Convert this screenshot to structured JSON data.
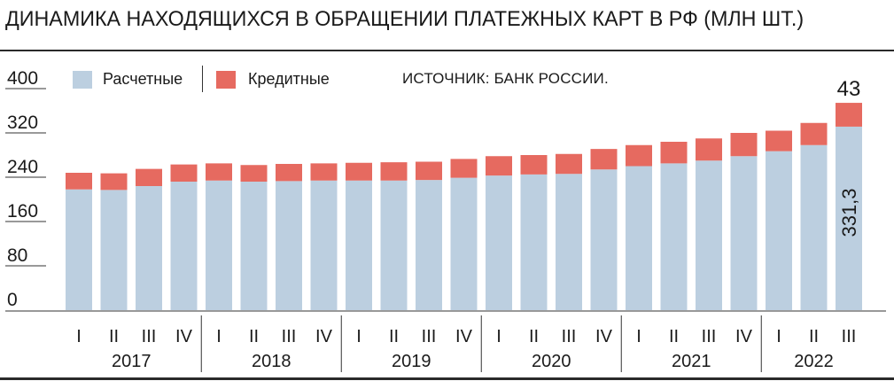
{
  "title": "ДИНАМИКА НАХОДЯЩИХСЯ В ОБРАЩЕНИИ ПЛАТЕЖНЫХ КАРТ В РФ (МЛН ШТ.)",
  "source": "ИСТОЧНИК: БАНК РОССИИ.",
  "colors": {
    "settlement": "#bccfe0",
    "credit": "#e66a60",
    "text": "#1a1a1a"
  },
  "legend": {
    "settlement_label": "Расчетные",
    "credit_label": "Кредитные"
  },
  "chart_data": {
    "type": "bar",
    "stacked": true,
    "title": "ДИНАМИКА НАХОДЯЩИХСЯ В ОБРАЩЕНИИ ПЛАТЕЖНЫХ КАРТ В РФ (МЛН ШТ.)",
    "ylim": [
      0,
      400
    ],
    "yticks": [
      "0",
      "80",
      "160",
      "240",
      "320",
      "400"
    ],
    "quarters": [
      "I",
      "II",
      "III",
      "IV",
      "I",
      "II",
      "III",
      "IV",
      "I",
      "II",
      "III",
      "IV",
      "I",
      "II",
      "III",
      "IV",
      "I",
      "II",
      "III",
      "IV",
      "I",
      "II",
      "III"
    ],
    "years": [
      {
        "label": "2017",
        "count": 4
      },
      {
        "label": "2018",
        "count": 4
      },
      {
        "label": "2019",
        "count": 4
      },
      {
        "label": "2020",
        "count": 4
      },
      {
        "label": "2021",
        "count": 4
      },
      {
        "label": "2022",
        "count": 3
      }
    ],
    "series": [
      {
        "name": "Расчетные",
        "values": [
          218,
          217,
          224,
          232,
          234,
          232,
          233,
          234,
          234,
          234,
          235,
          239,
          243,
          245,
          246,
          254,
          260,
          265,
          270,
          278,
          287,
          298,
          331.3
        ]
      },
      {
        "name": "Кредитные",
        "values": [
          30,
          30,
          31,
          31,
          31,
          30,
          31,
          31,
          32,
          33,
          33,
          34,
          35,
          35,
          36,
          37,
          38,
          39,
          40,
          42,
          37,
          40,
          43
        ]
      }
    ],
    "annotations": {
      "last_settlement": "331,3",
      "last_credit": "43"
    }
  }
}
